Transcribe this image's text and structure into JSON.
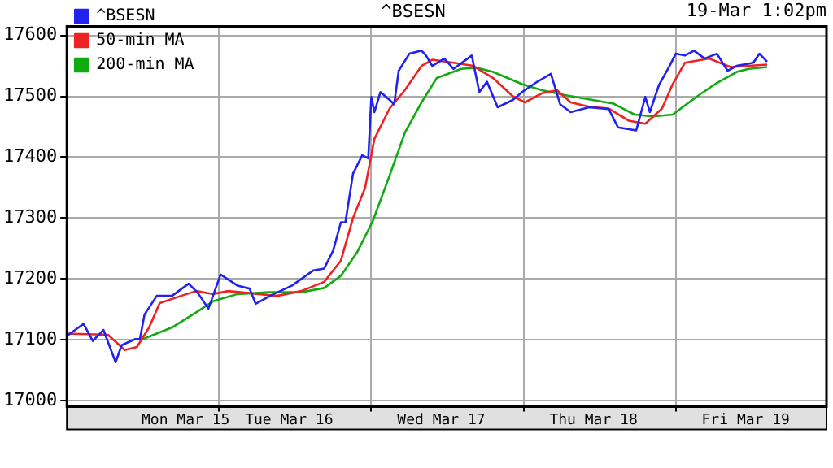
{
  "chart_data": {
    "type": "line",
    "title": "^BSESN",
    "annotations": [
      "19-Mar 1:02pm"
    ],
    "xlim": [
      "--03-15T00:00",
      "--03-19T23:46"
    ],
    "xticks": [
      {
        "value": "--03-15T18:43",
        "label": "Mon Mar 15"
      },
      {
        "value": "--03-16T00:00",
        "label": null
      },
      {
        "value": "--03-16T11:02",
        "label": "Tue Mar 16"
      },
      {
        "value": "--03-17T00:00",
        "label": null
      },
      {
        "value": "--03-17T11:02",
        "label": "Wed Mar 17"
      },
      {
        "value": "--03-18T00:00",
        "label": null
      },
      {
        "value": "--03-18T11:02",
        "label": "Thu Mar 18"
      },
      {
        "value": "--03-19T00:00",
        "label": null
      },
      {
        "value": "--03-19T11:02",
        "label": "Fri Mar 19"
      }
    ],
    "ylim": [
      16990,
      17615
    ],
    "yticks": [
      17000,
      17100,
      17200,
      17300,
      17400,
      17500,
      17600
    ],
    "grid": true,
    "legend": "top left",
    "marker": "none",
    "line_style": "solid",
    "series": [
      {
        "name": "^BSESN",
        "color": "#2222ee",
        "x": [
          "--03-15T00:00",
          "--03-15T02:38",
          "--03-15T04:05",
          "--03-15T05:46",
          "--03-15T07:41",
          "--03-15T08:38",
          "--03-15T10:48",
          "--03-15T11:31",
          "--03-15T12:14",
          "--03-15T14:10",
          "--03-15T16:34",
          "--03-15T19:12",
          "--03-15T20:38",
          "--03-15T22:19",
          "--03-16T00:14",
          "--03-16T02:53",
          "--03-16T04:48",
          "--03-16T05:46",
          "--03-16T08:24",
          "--03-16T11:31",
          "--03-16T14:53",
          "--03-16T16:34",
          "--03-16T18:00",
          "--03-16T19:12",
          "--03-16T19:55",
          "--03-16T21:07",
          "--03-16T22:34",
          "--03-16T23:31",
          "--03-17T00:00",
          "--03-17T00:29",
          "--03-17T01:26",
          "--03-17T02:53",
          "--03-17T03:36",
          "--03-17T04:19",
          "--03-17T06:00",
          "--03-17T07:55",
          "--03-17T08:38",
          "--03-17T09:36",
          "--03-17T11:31",
          "--03-17T12:58",
          "--03-17T15:50",
          "--03-17T17:02",
          "--03-17T18:14",
          "--03-17T19:55",
          "--03-17T22:19",
          "--03-17T23:46",
          "--03-18T02:10",
          "--03-18T04:19",
          "--03-18T05:46",
          "--03-18T07:26",
          "--03-18T10:19",
          "--03-18T13:26",
          "--03-18T14:53",
          "--03-18T17:46",
          "--03-18T19:12",
          "--03-18T19:55",
          "--03-18T21:22",
          "--03-18T23:02",
          "--03-19T00:00",
          "--03-19T01:26",
          "--03-19T02:53",
          "--03-19T04:34",
          "--03-19T06:29",
          "--03-19T08:10",
          "--03-19T09:36",
          "--03-19T12:14",
          "--03-19T13:12",
          "--03-19T14:24"
        ],
        "values": [
          17106,
          17126,
          17098,
          17116,
          17063,
          17091,
          17101,
          17101,
          17141,
          17172,
          17172,
          17192,
          17177,
          17151,
          17207,
          17189,
          17184,
          17159,
          17174,
          17189,
          17214,
          17217,
          17247,
          17293,
          17293,
          17373,
          17403,
          17398,
          17499,
          17474,
          17507,
          17494,
          17487,
          17542,
          17570,
          17575,
          17567,
          17550,
          17562,
          17545,
          17567,
          17507,
          17524,
          17482,
          17494,
          17507,
          17524,
          17537,
          17487,
          17474,
          17482,
          17479,
          17449,
          17444,
          17499,
          17474,
          17519,
          17550,
          17570,
          17567,
          17575,
          17562,
          17570,
          17542,
          17550,
          17555,
          17570,
          17557
        ]
      },
      {
        "name": "50-min MA",
        "color": "#ee2222",
        "x": [
          "--03-15T00:00",
          "--03-15T06:29",
          "--03-15T09:07",
          "--03-15T11:02",
          "--03-15T12:58",
          "--03-15T14:38",
          "--03-15T18:00",
          "--03-15T20:24",
          "--03-15T23:02",
          "--03-16T01:26",
          "--03-16T05:17",
          "--03-16T09:07",
          "--03-16T12:58",
          "--03-16T16:34",
          "--03-16T19:12",
          "--03-16T21:07",
          "--03-16T23:02",
          "--03-17T00:29",
          "--03-17T02:53",
          "--03-17T05:17",
          "--03-17T07:55",
          "--03-17T09:36",
          "--03-17T12:58",
          "--03-17T16:05",
          "--03-17T19:12",
          "--03-17T22:19",
          "--03-18T00:14",
          "--03-18T02:53",
          "--03-18T05:17",
          "--03-18T07:26",
          "--03-18T10:19",
          "--03-18T13:26",
          "--03-18T16:34",
          "--03-18T19:12",
          "--03-18T21:50",
          "--03-18T23:31",
          "--03-19T01:26",
          "--03-19T05:17",
          "--03-19T08:38",
          "--03-19T11:31",
          "--03-19T14:24"
        ],
        "values": [
          17110,
          17108,
          17083,
          17088,
          17120,
          17160,
          17172,
          17180,
          17175,
          17180,
          17176,
          17172,
          17180,
          17195,
          17230,
          17300,
          17350,
          17430,
          17480,
          17510,
          17550,
          17560,
          17555,
          17550,
          17530,
          17500,
          17490,
          17505,
          17510,
          17490,
          17483,
          17480,
          17460,
          17455,
          17480,
          17520,
          17555,
          17562,
          17548,
          17550,
          17552
        ]
      },
      {
        "name": "200-min MA",
        "color": "#11aa11",
        "x": [
          "--03-15T11:31",
          "--03-15T16:34",
          "--03-15T20:24",
          "--03-15T23:02",
          "--03-16T02:53",
          "--03-16T07:55",
          "--03-16T12:58",
          "--03-16T16:34",
          "--03-16T19:12",
          "--03-16T21:50",
          "--03-17T00:14",
          "--03-17T02:53",
          "--03-17T05:17",
          "--03-17T07:55",
          "--03-17T10:19",
          "--03-17T14:10",
          "--03-17T16:34",
          "--03-17T19:12",
          "--03-17T23:46",
          "--03-18T02:53",
          "--03-18T06:29",
          "--03-18T10:19",
          "--03-18T14:10",
          "--03-18T17:31",
          "--03-18T20:24",
          "--03-18T23:31",
          "--03-19T01:26",
          "--03-19T04:05",
          "--03-19T06:29",
          "--03-19T09:36",
          "--03-19T11:31",
          "--03-19T14:24"
        ],
        "values": [
          17099,
          17120,
          17145,
          17163,
          17175,
          17178,
          17178,
          17185,
          17205,
          17245,
          17295,
          17370,
          17440,
          17490,
          17530,
          17545,
          17547,
          17540,
          17520,
          17510,
          17502,
          17495,
          17488,
          17470,
          17467,
          17470,
          17485,
          17505,
          17522,
          17540,
          17545,
          17548
        ]
      }
    ]
  }
}
